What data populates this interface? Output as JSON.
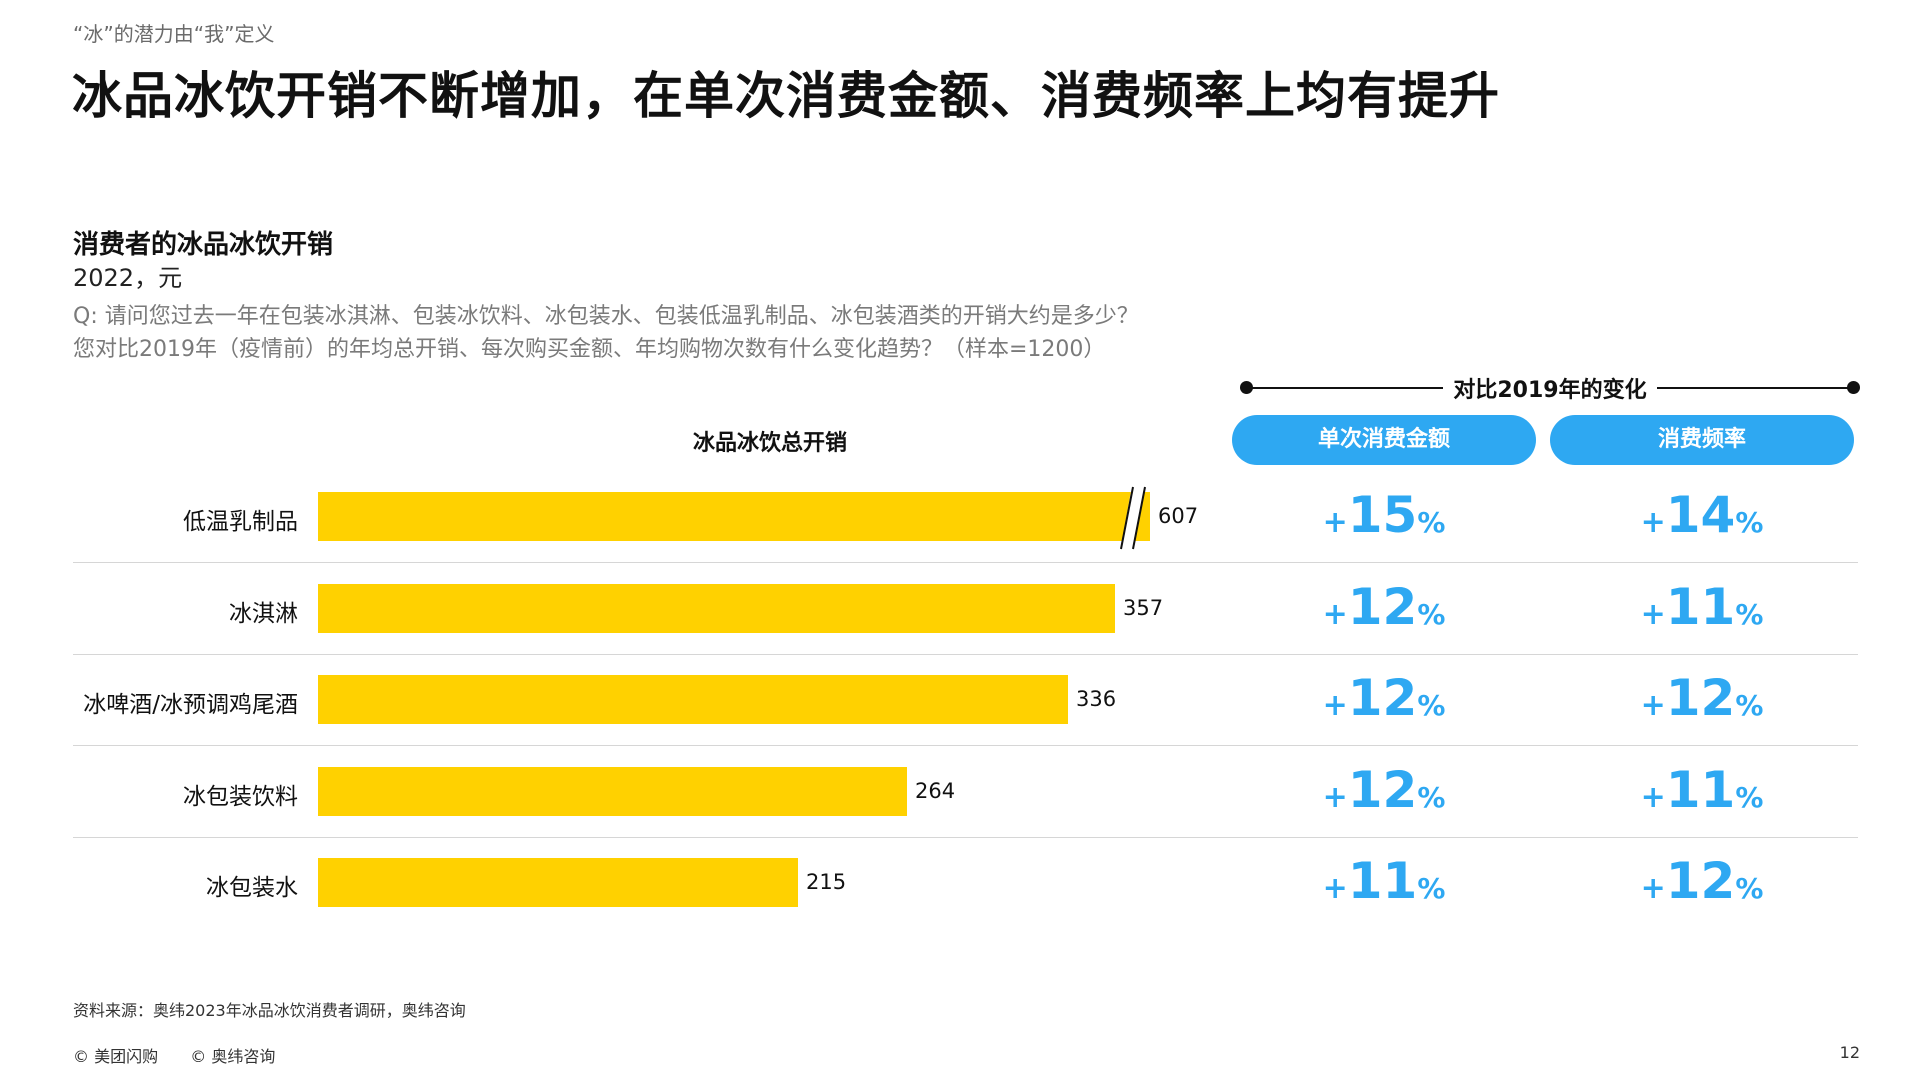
{
  "kicker": "“冰”的潜力由“我”定义",
  "title": "冰品冰饮开销不断增加，在单次消费金额、消费频率上均有提升",
  "section": {
    "title": "消费者的冰品冰饮开销",
    "subtitle": "2022，元",
    "question_line1": "Q: 请问您过去一年在包装冰淇淋、包装冰饮料、冰包装水、包装低温乳制品、冰包装酒类的开销大约是多少？",
    "question_line2": "您对比2019年（疫情前）的年均总开销、每次购买金额、年均购物次数有什么变化趋势？（样本=1200）"
  },
  "compare_header": "对比2019年的变化",
  "colors": {
    "bar": "#ffd100",
    "accent": "#2ea8f2"
  },
  "chart_data": {
    "type": "bar",
    "orientation": "horizontal",
    "title": "冰品冰饮总开销",
    "categories": [
      "低温乳制品",
      "冰淇淋",
      "冰啤酒/冰预调鸡尾酒",
      "冰包装饮料",
      "冰包装水"
    ],
    "values": [
      607,
      357,
      336,
      264,
      215
    ],
    "axis_break_on": "低温乳制品",
    "value_labels": [
      "607",
      "357",
      "336",
      "264",
      "215"
    ],
    "change_columns": [
      {
        "name": "单次消费金额",
        "values": [
          "+15%",
          "+12%",
          "+12%",
          "+12%",
          "+11%"
        ]
      },
      {
        "name": "消费频率",
        "values": [
          "+14%",
          "+11%",
          "+12%",
          "+11%",
          "+12%"
        ]
      }
    ]
  },
  "source": "资料来源：奥纬2023年冰品冰饮消费者调研，奥纬咨询",
  "footer": {
    "copyright1": "© 美团闪购",
    "copyright2": "© 奥纬咨询",
    "page": "12"
  }
}
